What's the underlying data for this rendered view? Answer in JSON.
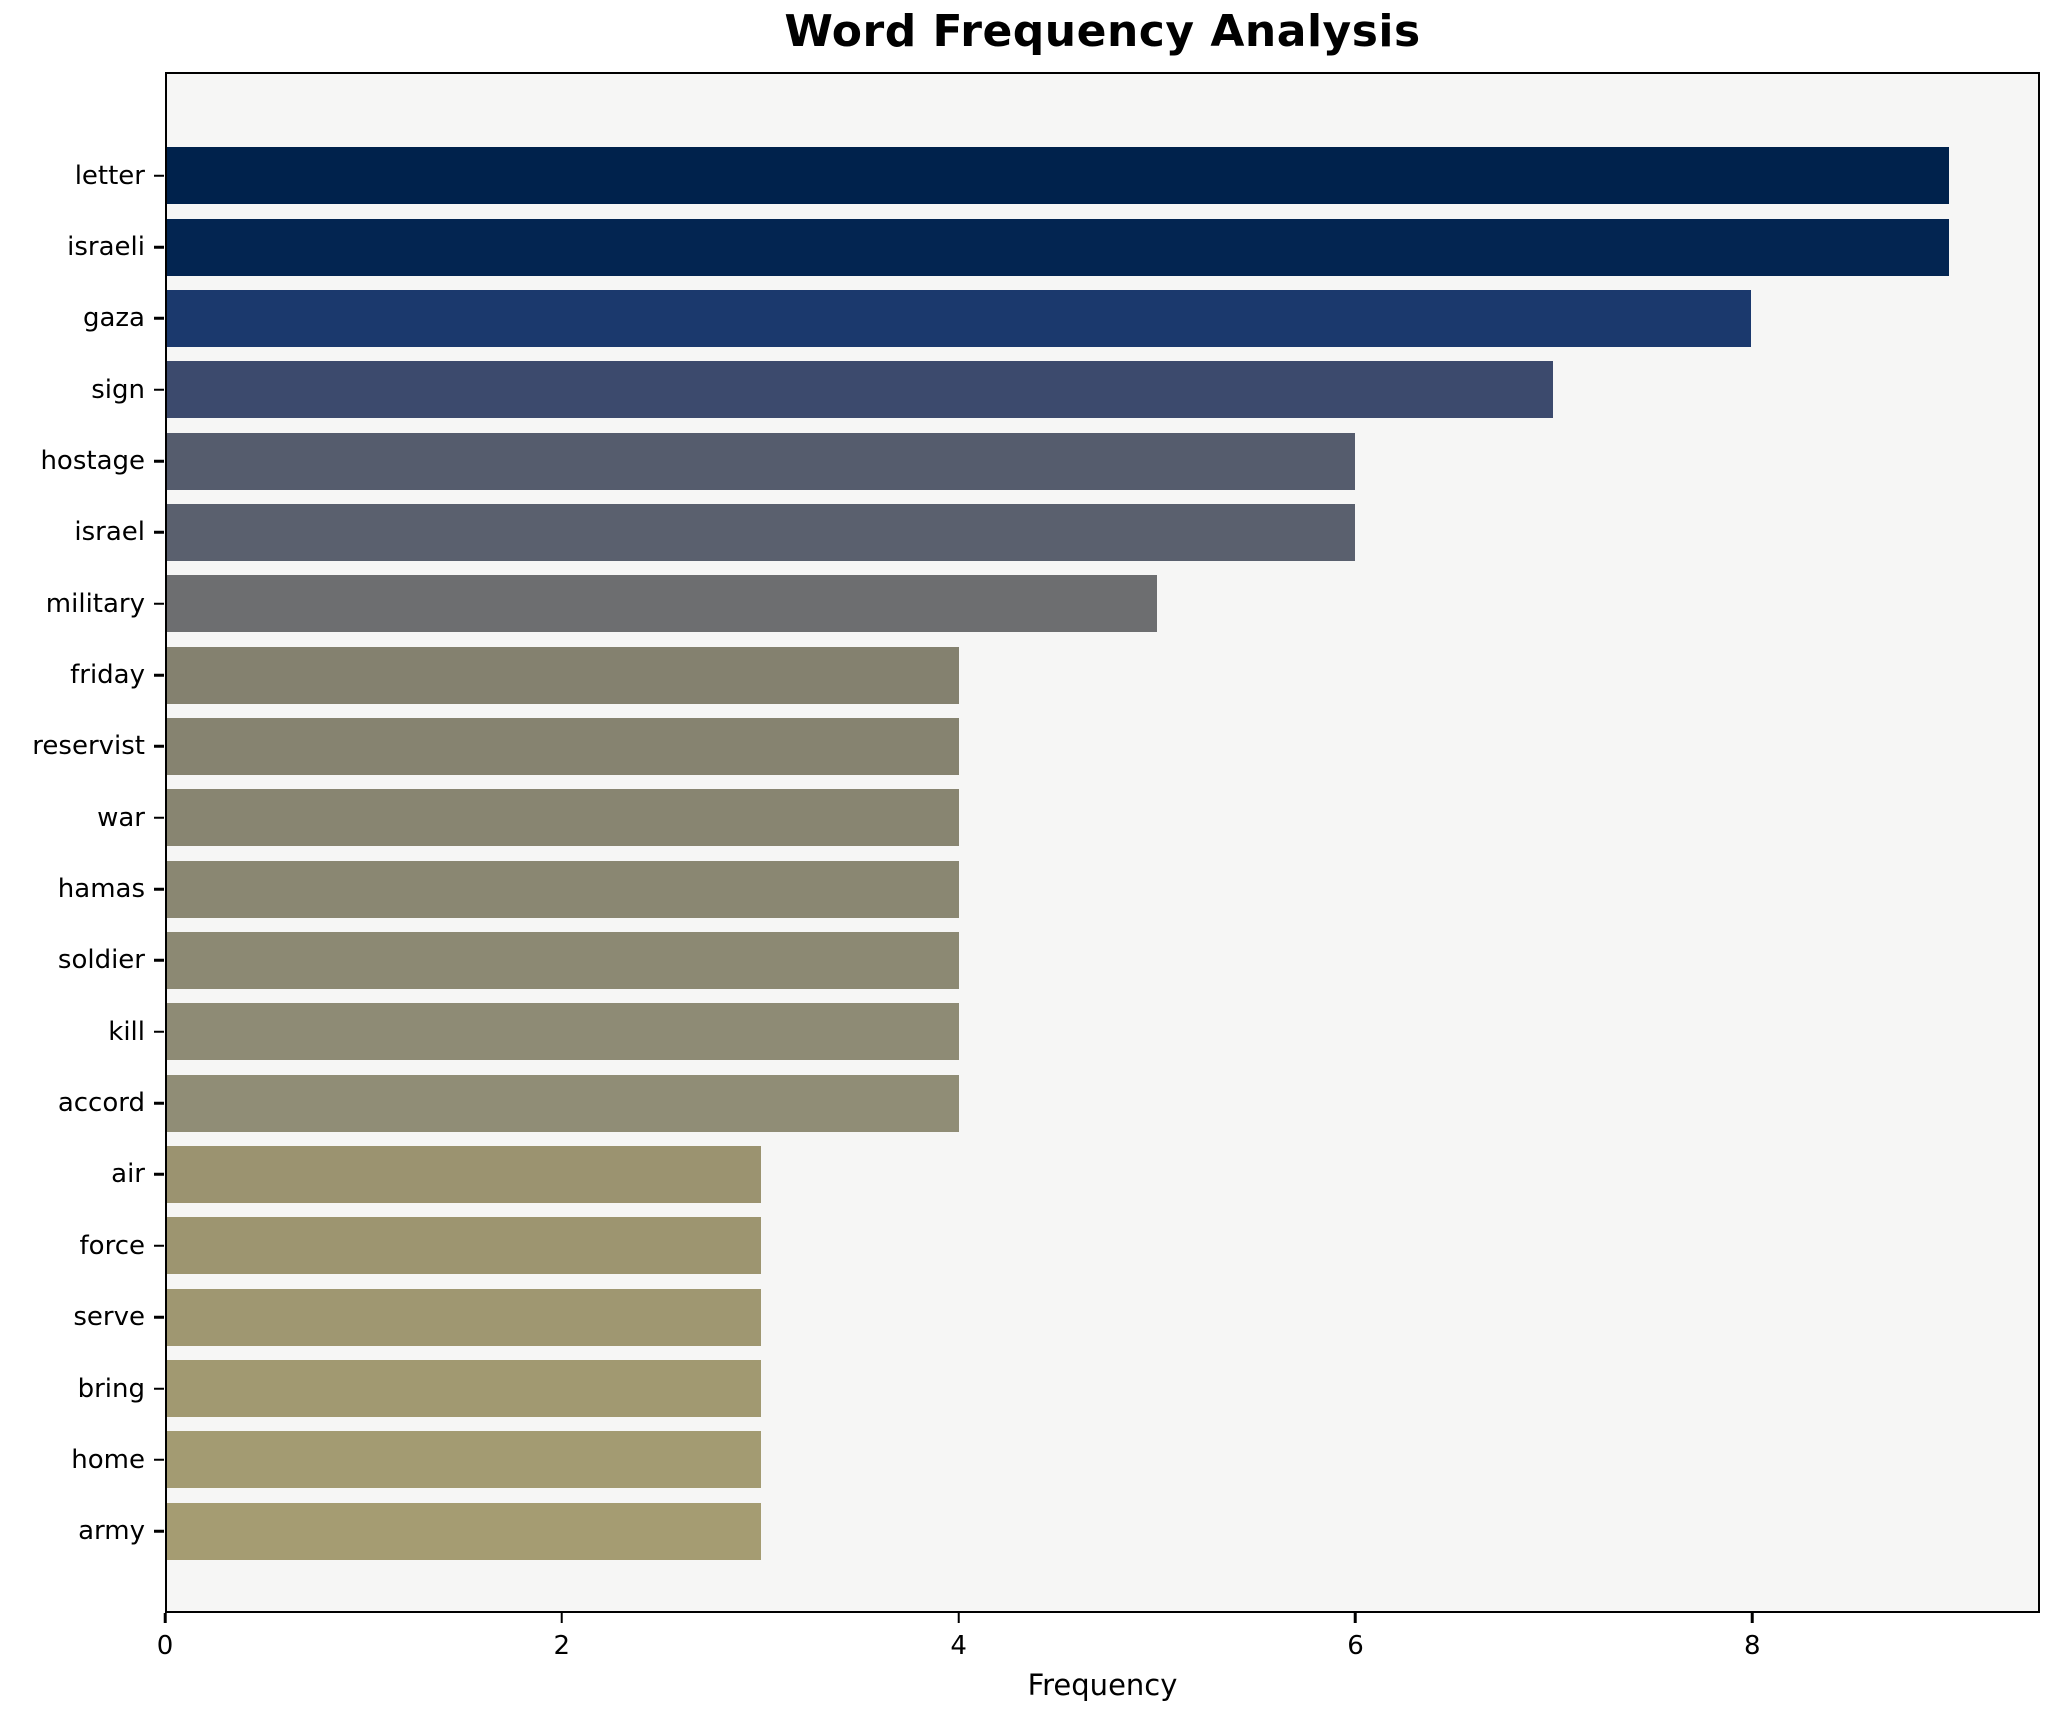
{
  "title": "Word Frequency Analysis",
  "chart_data": {
    "type": "bar",
    "orientation": "horizontal",
    "title": "Word Frequency Analysis",
    "xlabel": "Frequency",
    "ylabel": "",
    "categories": [
      "letter",
      "israeli",
      "gaza",
      "sign",
      "hostage",
      "israel",
      "military",
      "friday",
      "reservist",
      "war",
      "hamas",
      "soldier",
      "kill",
      "accord",
      "air",
      "force",
      "serve",
      "bring",
      "home",
      "army"
    ],
    "values": [
      9,
      9,
      8,
      7,
      6,
      6,
      5,
      4,
      4,
      4,
      4,
      4,
      4,
      4,
      3,
      3,
      3,
      3,
      3,
      3
    ],
    "colors": [
      "#00224c",
      "#032551",
      "#1b396d",
      "#3c4a6d",
      "#555c6d",
      "#5a606e",
      "#6d6e70",
      "#84816f",
      "#868370",
      "#888571",
      "#8a8772",
      "#8c8973",
      "#8e8b75",
      "#908d76",
      "#9b9370",
      "#9d9570",
      "#9f9771",
      "#a19971",
      "#a39b72",
      "#a59c72"
    ],
    "xlim": [
      0,
      9.45
    ],
    "xticks": [
      0,
      2,
      4,
      6,
      8
    ],
    "grid": false,
    "legend": false,
    "plot_background": "#f6f6f5",
    "figure_background": "#ffffff",
    "spine_color": "#000000"
  }
}
